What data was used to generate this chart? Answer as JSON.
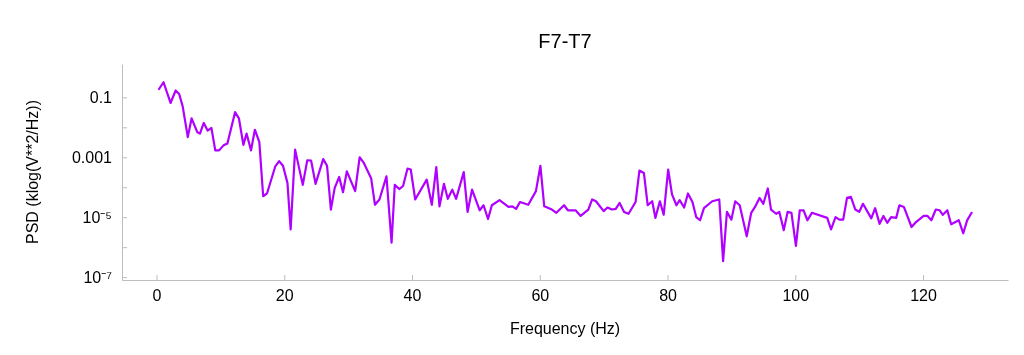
{
  "chart_data": {
    "type": "line",
    "title": "F7-T7",
    "xlabel": "Frequency (Hz)",
    "ylabel": "PSD (klog(V**2/Hz))",
    "log": "y",
    "grid": false,
    "marker": "none",
    "line_style": "solid",
    "xlim": [
      -5.4,
      133.3
    ],
    "xticks": [
      0,
      20,
      40,
      60,
      80,
      100,
      120
    ],
    "ylim": [
      8e-08,
      1.3
    ],
    "yticks": [
      {
        "value": 0.1,
        "label": "0.1"
      },
      {
        "value": 0.01,
        "label": null
      },
      {
        "value": 0.001,
        "label": "0.001"
      },
      {
        "value": 0.0001,
        "label": null
      },
      {
        "value": 1e-05,
        "label": "10⁻⁵"
      },
      {
        "value": 1e-06,
        "label": null
      },
      {
        "value": 1e-07,
        "label": "10⁻⁷"
      }
    ],
    "series": [
      {
        "color": "#b000ff",
        "x": [
          0.4,
          1.1,
          2.2,
          3.0,
          3.55,
          4.1,
          4.9,
          5.5,
          6.4,
          6.8,
          7.4,
          8.0,
          8.6,
          9.2,
          9.8,
          10.5,
          11.1,
          12.3,
          12.9,
          13.6,
          14.1,
          14.8,
          15.4,
          16.1,
          16.7,
          17.3,
          18.6,
          19.2,
          19.8,
          20.5,
          21.0,
          21.7,
          22.9,
          23.6,
          24.2,
          24.9,
          26.1,
          26.7,
          27.3,
          27.9,
          28.6,
          29.2,
          29.8,
          31.1,
          31.8,
          32.4,
          33.6,
          34.2,
          34.9,
          36.0,
          36.8,
          37.3,
          38.0,
          38.6,
          39.3,
          39.8,
          40.5,
          42.3,
          43.1,
          43.8,
          44.3,
          45.0,
          45.6,
          46.3,
          46.9,
          48.1,
          48.7,
          49.4,
          50.6,
          51.2,
          51.9,
          52.5,
          53.7,
          55.1,
          55.7,
          56.3,
          56.9,
          58.2,
          59.4,
          60.1,
          60.7,
          61.9,
          62.6,
          63.8,
          64.4,
          65.6,
          66.4,
          67.6,
          68.2,
          68.8,
          70.0,
          70.6,
          71.3,
          71.9,
          72.5,
          73.2,
          73.9,
          75.0,
          75.6,
          76.3,
          76.9,
          77.6,
          78.1,
          78.8,
          79.4,
          80.1,
          80.7,
          81.4,
          81.9,
          82.6,
          83.2,
          83.9,
          84.5,
          85.1,
          85.7,
          87.0,
          88.1,
          88.7,
          89.3,
          90.0,
          90.6,
          91.3,
          92.4,
          93.1,
          93.7,
          94.4,
          95.0,
          95.7,
          96.2,
          97.0,
          97.5,
          98.2,
          98.8,
          99.4,
          100.1,
          100.7,
          101.3,
          101.9,
          102.6,
          105.0,
          105.6,
          106.3,
          106.9,
          107.5,
          108.1,
          108.7,
          109.4,
          110.0,
          110.6,
          111.9,
          112.5,
          113.2,
          113.8,
          114.4,
          115.0,
          115.8,
          116.3,
          117.0,
          118.2,
          118.9,
          120.1,
          120.7,
          121.3,
          122.0,
          122.6,
          123.1,
          123.8,
          124.4,
          125.6,
          126.3,
          126.9,
          127.6
        ],
        "values": [
          0.19,
          0.32,
          0.065,
          0.17,
          0.13,
          0.05,
          0.0047,
          0.02,
          0.0068,
          0.0062,
          0.014,
          0.0078,
          0.0095,
          0.0017,
          0.0017,
          0.0025,
          0.0029,
          0.032,
          0.02,
          0.0026,
          0.0062,
          0.0017,
          0.0083,
          0.0032,
          5e-05,
          6.2e-05,
          0.0005,
          0.00074,
          0.00052,
          0.00014,
          3.9e-06,
          0.0018,
          0.00012,
          0.00079,
          0.00078,
          0.00013,
          0.00087,
          0.00052,
          1.8e-05,
          9.5e-05,
          0.00022,
          6.8e-05,
          0.00034,
          7.4e-05,
          0.001,
          0.00068,
          0.0002,
          2.6e-05,
          3.9e-05,
          0.00023,
          1.4e-06,
          0.00012,
          8.7e-05,
          0.00011,
          0.00042,
          0.00039,
          3.9e-05,
          0.00018,
          2.6e-05,
          0.00047,
          2.3e-05,
          0.00013,
          4.1e-05,
          8.3e-05,
          4.1e-05,
          0.00032,
          1.5e-05,
          8.3e-05,
          1.7e-05,
          2.5e-05,
          8.7e-06,
          2.5e-05,
          3.7e-05,
          2.2e-05,
          2.3e-05,
          1.9e-05,
          3.2e-05,
          2.6e-05,
          7.4e-05,
          0.00052,
          2.3e-05,
          1.8e-05,
          1.4e-05,
          2.5e-05,
          1.7e-05,
          1.7e-05,
          1.1e-05,
          1.8e-05,
          3.9e-05,
          3.4e-05,
          1.6e-05,
          2.1e-05,
          1.8e-05,
          1.9e-05,
          3e-05,
          1.5e-05,
          1.3e-05,
          3.2e-05,
          0.00036,
          0.0003,
          2.5e-05,
          3.4e-05,
          9.5e-06,
          3.4e-05,
          1.2e-05,
          0.00039,
          5.8e-05,
          2.5e-05,
          3.7e-05,
          2.1e-05,
          6.2e-05,
          3.2e-05,
          1e-05,
          7.9e-06,
          2e-05,
          3.4e-05,
          3.9e-05,
          3.4e-07,
          1.5e-05,
          8.3e-06,
          3.4e-05,
          2.5e-05,
          2.3e-06,
          1.4e-05,
          2.2e-05,
          4.4e-05,
          2.8e-05,
          9.1e-05,
          1.8e-05,
          1.3e-05,
          1.5e-05,
          3.7e-06,
          1.5e-05,
          1.4e-05,
          1.1e-06,
          1.7e-05,
          1.7e-05,
          7.9e-06,
          1.4e-05,
          9.5e-06,
          3.9e-06,
          1e-05,
          8.3e-06,
          8.3e-06,
          4.4e-05,
          4.8e-05,
          1.8e-05,
          1.5e-05,
          2.8e-05,
          9.1e-06,
          2e-05,
          6e-06,
          1.1e-05,
          6.5e-06,
          1e-05,
          9.5e-06,
          2.5e-05,
          2.2e-05,
          4.7e-06,
          6.9e-06,
          1.1e-05,
          1.1e-05,
          7.9e-06,
          1.8e-05,
          1.7e-05,
          1.2e-05,
          1.7e-05,
          5.8e-06,
          7.9e-06,
          2.9e-06,
          7.8e-06,
          1.4e-05
        ]
      }
    ]
  }
}
